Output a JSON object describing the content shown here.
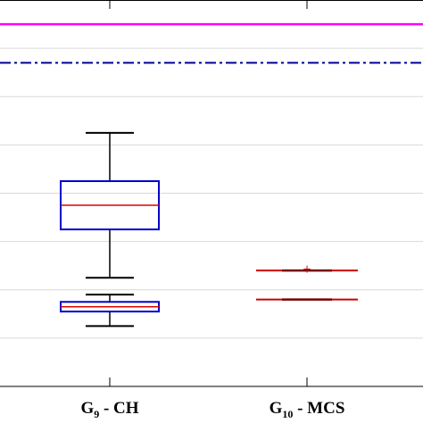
{
  "chart_data": {
    "type": "box",
    "categories": [
      "G9 - CH",
      "G10 - MCS"
    ],
    "tick_labels": [
      {
        "main": "G",
        "sub": "9",
        "rest": " - CH"
      },
      {
        "main": "G",
        "sub": "10",
        "rest": " - MCS"
      }
    ],
    "boxes": [
      {
        "category": "G9 - CH",
        "whisker_low": 0.585,
        "q1": 0.605,
        "median": 0.615,
        "q3": 0.625,
        "whisker_high": 0.645,
        "color": "#0000cc",
        "median_color": "#dd0000"
      },
      {
        "category": "G9 - CH",
        "whisker_low": 0.565,
        "q1": 0.571,
        "median": 0.573,
        "q3": 0.575,
        "whisker_high": 0.578,
        "color": "#0000cc",
        "median_color": "#dd0000"
      },
      {
        "category": "G10 - MCS",
        "whisker_low": 0.588,
        "q1": 0.588,
        "median": 0.588,
        "q3": 0.588,
        "whisker_high": 0.588,
        "color": "#cc0000",
        "median_color": "#7a0000"
      },
      {
        "category": "G10 - MCS",
        "whisker_low": 0.576,
        "q1": 0.576,
        "median": 0.576,
        "q3": 0.576,
        "whisker_high": 0.576,
        "color": "#cc0000",
        "median_color": "#7a0000"
      }
    ],
    "outliers": [
      {
        "category": "G10 - MCS",
        "y": 0.5885,
        "color": "#cc0000"
      }
    ],
    "reference_lines": [
      {
        "y": 0.69,
        "style": "solid",
        "color": "#ff00ff"
      },
      {
        "y": 0.674,
        "style": "dash-dot",
        "color": "#000099"
      }
    ],
    "ylim": [
      0.54,
      0.7
    ],
    "grid": true,
    "colors": {
      "grid": "#d9d9d9",
      "axis": "#000000"
    }
  }
}
